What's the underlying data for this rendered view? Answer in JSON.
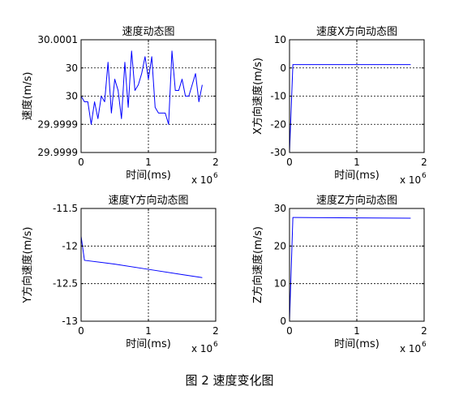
{
  "figure_caption": "图 2 速度变化图",
  "colors": {
    "line": "#0000ff",
    "axis": "#000000",
    "grid": "#000000"
  },
  "chart_data": [
    {
      "type": "line",
      "title": "速度动态图",
      "xlabel": "时间(ms)",
      "ylabel": "速度(m/s)",
      "x_multiplier_label": "x 10",
      "x_multiplier_exponent": "6",
      "xlim": [
        0,
        2
      ],
      "ylim": [
        29.99985,
        30.00005
      ],
      "xticks": [
        0,
        1,
        2
      ],
      "xtick_labels": [
        "0",
        "1",
        "2"
      ],
      "yticks": [
        30.00005,
        30.0,
        29.99995,
        29.9999,
        29.99985
      ],
      "ytick_labels": [
        "30.0001",
        "30",
        "30",
        "29.9999",
        "29.9999"
      ],
      "grid": true,
      "series": [
        {
          "x": [
            0.0,
            0.05,
            0.1,
            0.15,
            0.2,
            0.25,
            0.3,
            0.35,
            0.4,
            0.45,
            0.5,
            0.55,
            0.6,
            0.65,
            0.7,
            0.75,
            0.8,
            0.85,
            0.9,
            0.95,
            1.0,
            1.05,
            1.1,
            1.15,
            1.2,
            1.25,
            1.3,
            1.35,
            1.4,
            1.45,
            1.5,
            1.55,
            1.6,
            1.65,
            1.7,
            1.75,
            1.8
          ],
          "y": [
            29.99995,
            29.99994,
            29.99994,
            29.9999,
            29.99994,
            29.99991,
            29.99995,
            29.99994,
            30.00001,
            29.99992,
            29.99998,
            29.99996,
            29.99991,
            30.00001,
            29.99993,
            30.00003,
            29.99996,
            29.99997,
            29.99999,
            30.00002,
            29.99998,
            30.00002,
            29.99993,
            29.99992,
            29.99992,
            29.99992,
            29.9999,
            30.00003,
            29.99996,
            29.99996,
            29.99998,
            29.99995,
            29.99995,
            29.99997,
            29.99999,
            29.99994,
            29.99997
          ]
        }
      ]
    },
    {
      "type": "line",
      "title": "速度X方向动态图",
      "xlabel": "时间(ms)",
      "ylabel": "X方向速度(m/s)",
      "x_multiplier_label": "x 10",
      "x_multiplier_exponent": "6",
      "xlim": [
        0,
        2
      ],
      "ylim": [
        -30,
        10
      ],
      "xticks": [
        0,
        1,
        2
      ],
      "xtick_labels": [
        "0",
        "1",
        "2"
      ],
      "yticks": [
        10,
        0,
        -10,
        -20,
        -30
      ],
      "ytick_labels": [
        "10",
        "0",
        "-10",
        "-20",
        "-30"
      ],
      "grid": true,
      "series": [
        {
          "x": [
            0.0,
            0.05,
            0.1,
            1.0,
            1.8
          ],
          "y": [
            -30,
            1.2,
            1.2,
            1.2,
            1.2
          ]
        }
      ]
    },
    {
      "type": "line",
      "title": "速度Y方向动态图",
      "xlabel": "时间(ms)",
      "ylabel": "Y方向速度(m/s)",
      "x_multiplier_label": "x 10",
      "x_multiplier_exponent": "6",
      "xlim": [
        0,
        2
      ],
      "ylim": [
        -13,
        -11.5
      ],
      "xticks": [
        0,
        1,
        2
      ],
      "xtick_labels": [
        "0",
        "1",
        "2"
      ],
      "yticks": [
        -11.5,
        -12,
        -12.5,
        -13
      ],
      "ytick_labels": [
        "-11.5",
        "-12",
        "-12.5",
        "-13"
      ],
      "grid": true,
      "series": [
        {
          "x": [
            0.0,
            0.05,
            0.5,
            1.0,
            1.5,
            1.8
          ],
          "y": [
            -11.87,
            -12.19,
            -12.24,
            -12.31,
            -12.38,
            -12.42
          ]
        }
      ]
    },
    {
      "type": "line",
      "title": "速度Z方向动态图",
      "xlabel": "时间(ms)",
      "ylabel": "Z方向速度(m/s)",
      "x_multiplier_label": "x 10",
      "x_multiplier_exponent": "6",
      "xlim": [
        0,
        2
      ],
      "ylim": [
        0,
        30
      ],
      "xticks": [
        0,
        1,
        2
      ],
      "xtick_labels": [
        "0",
        "1",
        "2"
      ],
      "yticks": [
        30,
        20,
        10,
        0
      ],
      "ytick_labels": [
        "30",
        "20",
        "10",
        "0"
      ],
      "grid": true,
      "series": [
        {
          "x": [
            0.0,
            0.05,
            0.1,
            1.0,
            1.8
          ],
          "y": [
            0,
            27.6,
            27.6,
            27.5,
            27.4
          ]
        }
      ]
    }
  ]
}
